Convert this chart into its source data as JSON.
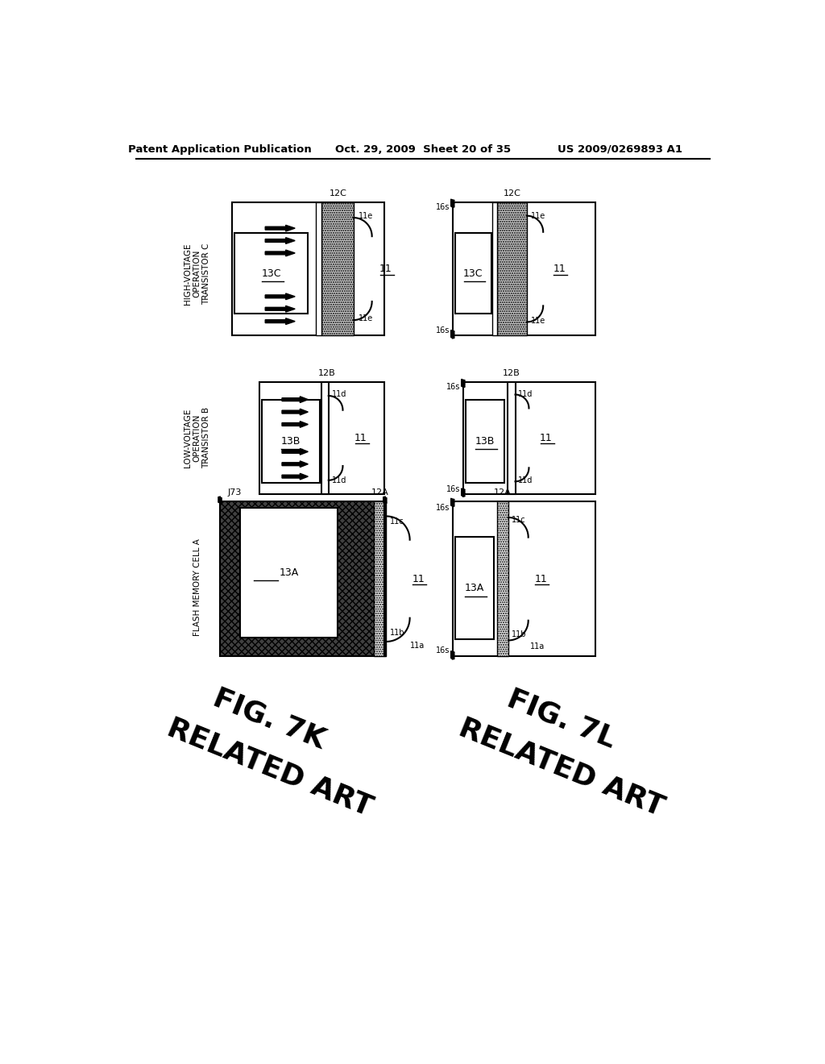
{
  "header_left": "Patent Application Publication",
  "header_mid": "Oct. 29, 2009  Sheet 20 of 35",
  "header_right": "US 2009/0269893 A1",
  "fig_left_label1": "FIG. 7K",
  "fig_left_label2": "RELATED ART",
  "fig_right_label1": "FIG. 7L",
  "fig_right_label2": "RELATED ART",
  "background": "#ffffff"
}
